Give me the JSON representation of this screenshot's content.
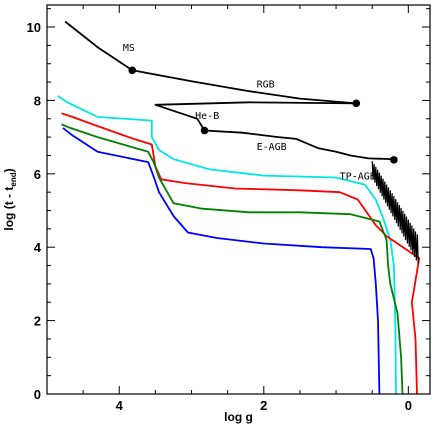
{
  "chart_data": {
    "type": "line",
    "title": "",
    "xlabel": "log g",
    "ylabel_main": "log (t - t",
    "ylabel_sub": "end",
    "ylabel_close": ")",
    "xlim": [
      5.0,
      -0.3
    ],
    "ylim": [
      0,
      10.6
    ],
    "x_ticks": [
      4,
      2,
      0
    ],
    "y_ticks": [
      0,
      2,
      4,
      6,
      8,
      10
    ],
    "grid": false,
    "annotations": [
      {
        "text": "MS",
        "x": 3.95,
        "y": 9.35
      },
      {
        "text": "RGB",
        "x": 2.1,
        "y": 8.35
      },
      {
        "text": "He-B",
        "x": 2.95,
        "y": 7.5
      },
      {
        "text": "E-AGB",
        "x": 2.1,
        "y": 6.65
      },
      {
        "text": "TP-AGB",
        "x": 0.95,
        "y": 5.85
      }
    ],
    "series": [
      {
        "color": "#000000",
        "values": [
          [
            4.75,
            10.15
          ],
          [
            4.3,
            9.45
          ],
          [
            3.82,
            8.82
          ],
          [
            3.0,
            8.52
          ],
          [
            2.2,
            8.25
          ],
          [
            1.5,
            8.05
          ],
          [
            0.72,
            7.92
          ],
          [
            2.2,
            7.95
          ],
          [
            3.5,
            7.88
          ],
          [
            2.92,
            7.5
          ],
          [
            2.82,
            7.18
          ],
          [
            2.3,
            7.12
          ],
          [
            1.8,
            7.0
          ],
          [
            1.55,
            6.95
          ],
          [
            1.25,
            6.7
          ],
          [
            1.0,
            6.6
          ],
          [
            0.8,
            6.5
          ],
          [
            0.55,
            6.42
          ],
          [
            0.22,
            6.4
          ],
          [
            0.2,
            6.38
          ]
        ],
        "markers": [
          [
            3.82,
            8.82
          ],
          [
            0.72,
            7.92
          ],
          [
            2.82,
            7.18
          ],
          [
            0.2,
            6.38
          ]
        ]
      },
      {
        "color": "#00e5e5",
        "values": [
          [
            4.85,
            8.12
          ],
          [
            4.72,
            7.95
          ],
          [
            4.3,
            7.55
          ],
          [
            3.55,
            7.45
          ],
          [
            3.55,
            7.0
          ],
          [
            3.45,
            6.65
          ],
          [
            3.25,
            6.4
          ],
          [
            2.75,
            6.12
          ],
          [
            2.0,
            5.95
          ],
          [
            1.0,
            5.9
          ],
          [
            0.6,
            5.7
          ],
          [
            0.45,
            5.3
          ],
          [
            0.35,
            4.8
          ],
          [
            0.25,
            4.2
          ],
          [
            0.2,
            3.5
          ],
          [
            0.18,
            2.0
          ],
          [
            0.17,
            0.0
          ]
        ]
      },
      {
        "color": "#ff0000",
        "values": [
          [
            4.8,
            7.65
          ],
          [
            4.65,
            7.55
          ],
          [
            4.3,
            7.3
          ],
          [
            3.8,
            6.95
          ],
          [
            3.55,
            6.8
          ],
          [
            3.5,
            6.2
          ],
          [
            3.42,
            5.85
          ],
          [
            3.1,
            5.75
          ],
          [
            2.4,
            5.6
          ],
          [
            1.5,
            5.55
          ],
          [
            0.95,
            5.5
          ],
          [
            0.7,
            5.3
          ],
          [
            0.45,
            4.6
          ],
          [
            0.3,
            4.3
          ],
          [
            0.15,
            4.1
          ],
          [
            0.0,
            3.9
          ],
          [
            -0.15,
            3.7
          ],
          [
            -0.05,
            2.5
          ],
          [
            -0.1,
            1.5
          ],
          [
            -0.12,
            0.0
          ]
        ]
      },
      {
        "color": "#008000",
        "values": [
          [
            4.8,
            7.35
          ],
          [
            4.68,
            7.25
          ],
          [
            4.3,
            7.0
          ],
          [
            3.6,
            6.6
          ],
          [
            3.52,
            6.3
          ],
          [
            3.45,
            5.9
          ],
          [
            3.25,
            5.2
          ],
          [
            2.85,
            5.05
          ],
          [
            2.2,
            4.95
          ],
          [
            1.5,
            4.95
          ],
          [
            0.8,
            4.9
          ],
          [
            0.4,
            4.7
          ],
          [
            0.3,
            4.2
          ],
          [
            0.28,
            3.5
          ],
          [
            0.25,
            3.0
          ],
          [
            0.15,
            2.2
          ],
          [
            0.1,
            1.0
          ],
          [
            0.08,
            0.0
          ]
        ]
      },
      {
        "color": "#0000ff",
        "values": [
          [
            4.78,
            7.25
          ],
          [
            4.65,
            7.05
          ],
          [
            4.3,
            6.6
          ],
          [
            3.6,
            6.32
          ],
          [
            3.52,
            5.9
          ],
          [
            3.45,
            5.5
          ],
          [
            3.25,
            4.85
          ],
          [
            3.05,
            4.4
          ],
          [
            2.65,
            4.25
          ],
          [
            2.0,
            4.1
          ],
          [
            1.2,
            4.0
          ],
          [
            0.52,
            3.95
          ],
          [
            0.48,
            3.7
          ],
          [
            0.45,
            3.0
          ],
          [
            0.42,
            2.0
          ],
          [
            0.4,
            0.0
          ]
        ]
      }
    ]
  }
}
